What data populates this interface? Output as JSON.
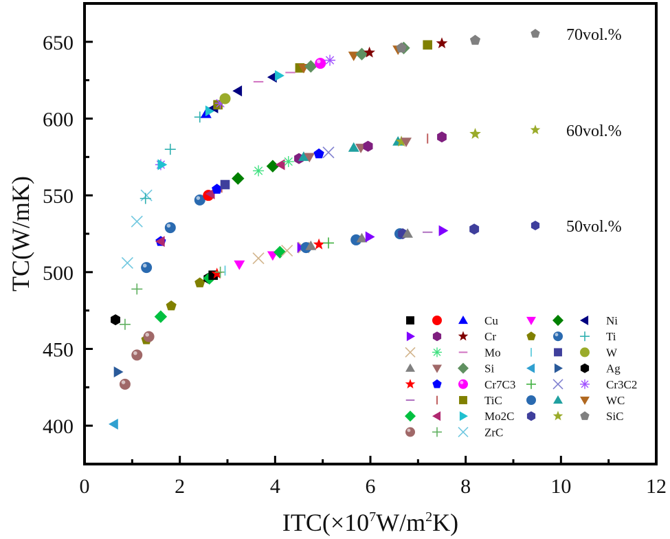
{
  "chart_data": {
    "type": "scatter",
    "title": "",
    "xlabel": "ITC(×10^7W/m^2K)",
    "xlabel_parts": {
      "pre": "ITC(×10",
      "sup1": "7",
      "mid": "W/m",
      "sup2": "2",
      "post": "K)"
    },
    "ylabel": "TC(W/mK)",
    "xlim": [
      0,
      12
    ],
    "ylim": [
      375,
      675
    ],
    "xticks": [
      0,
      2,
      4,
      6,
      8,
      10,
      12
    ],
    "xminor": [
      1,
      3,
      5,
      7,
      9,
      11
    ],
    "yticks": [
      400,
      450,
      500,
      550,
      600,
      650
    ],
    "yminor": [
      425,
      475,
      525,
      575,
      625
    ],
    "grid": false,
    "series_labels": [
      {
        "label": "70vol.%",
        "marker": "pentagon",
        "color": "#808080",
        "y_level": 651
      },
      {
        "label": "60vol.%",
        "marker": "star",
        "color": "#9aab2a",
        "y_level": 593
      },
      {
        "label": "50vol.%",
        "marker": "hexagon",
        "color": "#3f3f9c",
        "y_level": 531
      }
    ],
    "legend_position": "bottom-right",
    "legend": [
      {
        "label": "Cu",
        "markers": [
          {
            "m": "square",
            "c": "#000000"
          },
          {
            "m": "circle",
            "c": "#ff0000"
          },
          {
            "m": "triangle-up",
            "c": "#0000ff"
          }
        ]
      },
      {
        "label": "Cr",
        "markers": [
          {
            "m": "triangle-right",
            "c": "#8000ff"
          },
          {
            "m": "hexagon",
            "c": "#7f1f7f"
          },
          {
            "m": "star",
            "c": "#7f0000"
          }
        ]
      },
      {
        "label": "Mo",
        "markers": [
          {
            "m": "x",
            "c": "#d2b48c"
          },
          {
            "m": "asterisk",
            "c": "#40e080"
          },
          {
            "m": "hbar",
            "c": "#d070c0"
          }
        ]
      },
      {
        "label": "Si",
        "markers": [
          {
            "m": "triangle-up",
            "c": "#808080"
          },
          {
            "m": "triangle-down",
            "c": "#a06868"
          },
          {
            "m": "diamond",
            "c": "#5f9060"
          }
        ]
      },
      {
        "label": "Cr7C3",
        "markers": [
          {
            "m": "star",
            "c": "#ff0000"
          },
          {
            "m": "pentagon",
            "c": "#0000ff"
          },
          {
            "m": "sphere",
            "c": "#ff00ff"
          }
        ]
      },
      {
        "label": "TiC",
        "markers": [
          {
            "m": "hbar",
            "c": "#b070c0"
          },
          {
            "m": "vbar",
            "c": "#c06060"
          },
          {
            "m": "square",
            "c": "#808000"
          }
        ]
      },
      {
        "label": "Mo2C",
        "markers": [
          {
            "m": "diamond",
            "c": "#00c040"
          },
          {
            "m": "triangle-left",
            "c": "#b02870"
          },
          {
            "m": "triangle-right",
            "c": "#20c0d0"
          }
        ]
      },
      {
        "label": "ZrC",
        "markers": [
          {
            "m": "sphere",
            "c": "#a06868"
          },
          {
            "m": "plus",
            "c": "#60b060"
          },
          {
            "m": "x",
            "c": "#70c8e0"
          }
        ]
      },
      {
        "label": "Ni",
        "markers": [
          {
            "m": "triangle-down",
            "c": "#ff00ff"
          },
          {
            "m": "diamond",
            "c": "#008000"
          },
          {
            "m": "triangle-left",
            "c": "#000080"
          }
        ]
      },
      {
        "label": "Ti",
        "markers": [
          {
            "m": "pentagon",
            "c": "#808000"
          },
          {
            "m": "sphere",
            "c": "#2a6ab0"
          },
          {
            "m": "plus",
            "c": "#30b0b0"
          }
        ]
      },
      {
        "label": "W",
        "markers": [
          {
            "m": "vbar",
            "c": "#70d0e0"
          },
          {
            "m": "square",
            "c": "#3f3f9c"
          },
          {
            "m": "circle",
            "c": "#9aab2a"
          }
        ]
      },
      {
        "label": "Ag",
        "markers": [
          {
            "m": "triangle-left",
            "c": "#30a0d0"
          },
          {
            "m": "triangle-right",
            "c": "#2a5a9a"
          },
          {
            "m": "hexagon",
            "c": "#000000"
          }
        ]
      },
      {
        "label": "Cr3C2",
        "markers": [
          {
            "m": "plus",
            "c": "#40b040"
          },
          {
            "m": "x",
            "c": "#8080d0"
          },
          {
            "m": "asterisk",
            "c": "#a050ff"
          }
        ]
      },
      {
        "label": "WC",
        "markers": [
          {
            "m": "circle",
            "c": "#2a6ab0"
          },
          {
            "m": "triangle-up",
            "c": "#20a0a0"
          },
          {
            "m": "triangle-down",
            "c": "#b06820"
          }
        ]
      },
      {
        "label": "SiC",
        "markers": [
          {
            "m": "hexagon",
            "c": "#3f3f9c"
          },
          {
            "m": "star",
            "c": "#9aab2a"
          },
          {
            "m": "pentagon",
            "c": "#808080"
          }
        ]
      }
    ],
    "points": [
      {
        "x": 0.62,
        "y": 401,
        "m": "triangle-left",
        "c": "#30a0d0",
        "s": "50vol.%"
      },
      {
        "x": 0.85,
        "y": 427,
        "m": "sphere",
        "c": "#a06868",
        "s": "50vol.%"
      },
      {
        "x": 0.7,
        "y": 435,
        "m": "triangle-right",
        "c": "#2a5a9a",
        "s": "50vol.%"
      },
      {
        "x": 1.1,
        "y": 446,
        "m": "sphere",
        "c": "#a06868",
        "s": "50vol.%"
      },
      {
        "x": 1.3,
        "y": 456,
        "m": "pentagon",
        "c": "#808000",
        "s": "50vol.%"
      },
      {
        "x": 1.35,
        "y": 458,
        "m": "sphere",
        "c": "#a06868",
        "s": "50vol.%"
      },
      {
        "x": 1.6,
        "y": 471,
        "m": "diamond",
        "c": "#00c040",
        "s": "50vol.%"
      },
      {
        "x": 1.82,
        "y": 478,
        "m": "pentagon",
        "c": "#808000",
        "s": "50vol.%"
      },
      {
        "x": 2.42,
        "y": 493,
        "m": "pentagon",
        "c": "#808000",
        "s": "50vol.%"
      },
      {
        "x": 2.6,
        "y": 496,
        "m": "hexagon",
        "c": "#000000",
        "s": "50vol.%"
      },
      {
        "x": 2.62,
        "y": 496,
        "m": "diamond",
        "c": "#00c040",
        "s": "50vol.%"
      },
      {
        "x": 2.7,
        "y": 498,
        "m": "square",
        "c": "#000000",
        "s": "50vol.%"
      },
      {
        "x": 2.78,
        "y": 499,
        "m": "star",
        "c": "#ff0000",
        "s": "50vol.%"
      },
      {
        "x": 2.85,
        "y": 500,
        "m": "plus",
        "c": "#60b060",
        "s": "50vol.%"
      },
      {
        "x": 2.95,
        "y": 501,
        "m": "vbar",
        "c": "#70d0e0",
        "s": "50vol.%"
      },
      {
        "x": 3.25,
        "y": 505,
        "m": "triangle-down",
        "c": "#ff00ff",
        "s": "50vol.%"
      },
      {
        "x": 3.65,
        "y": 509,
        "m": "x",
        "c": "#d2b48c",
        "s": "50vol.%"
      },
      {
        "x": 3.95,
        "y": 511,
        "m": "triangle-down",
        "c": "#ff00ff",
        "s": "50vol.%"
      },
      {
        "x": 4.1,
        "y": 513,
        "m": "diamond",
        "c": "#00c040",
        "s": "50vol.%"
      },
      {
        "x": 4.25,
        "y": 514,
        "m": "x",
        "c": "#d2b48c",
        "s": "50vol.%"
      },
      {
        "x": 4.55,
        "y": 516,
        "m": "triangle-right",
        "c": "#8000ff",
        "s": "50vol.%"
      },
      {
        "x": 4.6,
        "y": 516,
        "m": "x",
        "c": "#d2b48c",
        "s": "50vol.%"
      },
      {
        "x": 4.65,
        "y": 516,
        "m": "circle",
        "c": "#2a6ab0",
        "s": "50vol.%"
      },
      {
        "x": 4.75,
        "y": 517,
        "m": "triangle-up",
        "c": "#808080",
        "s": "50vol.%"
      },
      {
        "x": 4.92,
        "y": 518,
        "m": "star",
        "c": "#ff0000",
        "s": "50vol.%"
      },
      {
        "x": 5.12,
        "y": 519,
        "m": "plus",
        "c": "#40b040",
        "s": "50vol.%"
      },
      {
        "x": 5.7,
        "y": 521,
        "m": "circle",
        "c": "#2a6ab0",
        "s": "50vol.%"
      },
      {
        "x": 5.82,
        "y": 522,
        "m": "triangle-up",
        "c": "#808080",
        "s": "50vol.%"
      },
      {
        "x": 5.98,
        "y": 523,
        "m": "triangle-right",
        "c": "#8000ff",
        "s": "50vol.%"
      },
      {
        "x": 6.62,
        "y": 525,
        "m": "circle",
        "c": "#2a6ab0",
        "s": "50vol.%"
      },
      {
        "x": 6.68,
        "y": 525,
        "m": "hexagon",
        "c": "#3f3f9c",
        "s": "50vol.%"
      },
      {
        "x": 6.78,
        "y": 525,
        "m": "triangle-up",
        "c": "#808080",
        "s": "50vol.%"
      },
      {
        "x": 7.2,
        "y": 526,
        "m": "hbar",
        "c": "#b070c0",
        "s": "50vol.%"
      },
      {
        "x": 7.52,
        "y": 527,
        "m": "triangle-right",
        "c": "#8000ff",
        "s": "50vol.%"
      },
      {
        "x": 8.18,
        "y": 528,
        "m": "hexagon",
        "c": "#3f3f9c",
        "s": "50vol.%"
      },
      {
        "x": 0.65,
        "y": 469,
        "m": "hexagon",
        "c": "#000000",
        "s": "60vol.%"
      },
      {
        "x": 0.85,
        "y": 466,
        "m": "plus",
        "c": "#60b060",
        "s": "60vol.%"
      },
      {
        "x": 1.1,
        "y": 489,
        "m": "plus",
        "c": "#60b060",
        "s": "60vol.%"
      },
      {
        "x": 1.3,
        "y": 503,
        "m": "sphere",
        "c": "#2a6ab0",
        "s": "60vol.%"
      },
      {
        "x": 1.6,
        "y": 520,
        "m": "pentagon",
        "c": "#0000ff",
        "s": "60vol.%"
      },
      {
        "x": 1.6,
        "y": 520,
        "m": "triangle-left",
        "c": "#b02870",
        "s": "60vol.%"
      },
      {
        "x": 1.8,
        "y": 529,
        "m": "sphere",
        "c": "#2a6ab0",
        "s": "60vol.%"
      },
      {
        "x": 2.42,
        "y": 547,
        "m": "sphere",
        "c": "#2a6ab0",
        "s": "60vol.%"
      },
      {
        "x": 2.6,
        "y": 550,
        "m": "circle",
        "c": "#ff0000",
        "s": "60vol.%"
      },
      {
        "x": 2.65,
        "y": 551,
        "m": "triangle-left",
        "c": "#b02870",
        "s": "60vol.%"
      },
      {
        "x": 2.78,
        "y": 554,
        "m": "pentagon",
        "c": "#0000ff",
        "s": "60vol.%"
      },
      {
        "x": 2.88,
        "y": 555,
        "m": "vbar",
        "c": "#c06060",
        "s": "60vol.%"
      },
      {
        "x": 2.95,
        "y": 557,
        "m": "square",
        "c": "#3f3f9c",
        "s": "60vol.%"
      },
      {
        "x": 3.22,
        "y": 561,
        "m": "diamond",
        "c": "#008000",
        "s": "60vol.%"
      },
      {
        "x": 3.65,
        "y": 566,
        "m": "asterisk",
        "c": "#40e080",
        "s": "60vol.%"
      },
      {
        "x": 3.95,
        "y": 569,
        "m": "diamond",
        "c": "#008000",
        "s": "60vol.%"
      },
      {
        "x": 4.12,
        "y": 570,
        "m": "triangle-left",
        "c": "#b02870",
        "s": "60vol.%"
      },
      {
        "x": 4.28,
        "y": 572,
        "m": "asterisk",
        "c": "#40e080",
        "s": "60vol.%"
      },
      {
        "x": 4.5,
        "y": 574,
        "m": "hexagon",
        "c": "#7f1f7f",
        "s": "60vol.%"
      },
      {
        "x": 4.6,
        "y": 575,
        "m": "triangle-up",
        "c": "#20a0a0",
        "s": "60vol.%"
      },
      {
        "x": 4.72,
        "y": 575,
        "m": "triangle-down",
        "c": "#a06868",
        "s": "60vol.%"
      },
      {
        "x": 4.92,
        "y": 577,
        "m": "pentagon",
        "c": "#0000ff",
        "s": "60vol.%"
      },
      {
        "x": 5.12,
        "y": 578,
        "m": "x",
        "c": "#8080d0",
        "s": "60vol.%"
      },
      {
        "x": 5.65,
        "y": 581,
        "m": "triangle-up",
        "c": "#20a0a0",
        "s": "60vol.%"
      },
      {
        "x": 5.8,
        "y": 581,
        "m": "triangle-down",
        "c": "#a06868",
        "s": "60vol.%"
      },
      {
        "x": 5.95,
        "y": 582,
        "m": "hexagon",
        "c": "#7f1f7f",
        "s": "60vol.%"
      },
      {
        "x": 6.58,
        "y": 585,
        "m": "triangle-up",
        "c": "#20a0a0",
        "s": "60vol.%"
      },
      {
        "x": 6.65,
        "y": 585,
        "m": "star",
        "c": "#9aab2a",
        "s": "60vol.%"
      },
      {
        "x": 6.75,
        "y": 585,
        "m": "triangle-down",
        "c": "#a06868",
        "s": "60vol.%"
      },
      {
        "x": 7.2,
        "y": 587,
        "m": "vbar",
        "c": "#c06060",
        "s": "60vol.%"
      },
      {
        "x": 7.5,
        "y": 588,
        "m": "hexagon",
        "c": "#7f1f7f",
        "s": "60vol.%"
      },
      {
        "x": 8.2,
        "y": 590,
        "m": "star",
        "c": "#9aab2a",
        "s": "60vol.%"
      },
      {
        "x": 0.9,
        "y": 506,
        "m": "x",
        "c": "#70c8e0",
        "s": "70vol.%"
      },
      {
        "x": 1.1,
        "y": 533,
        "m": "x",
        "c": "#70c8e0",
        "s": "70vol.%"
      },
      {
        "x": 1.3,
        "y": 550,
        "m": "x",
        "c": "#70c8e0",
        "s": "70vol.%"
      },
      {
        "x": 1.28,
        "y": 548,
        "m": "plus",
        "c": "#30b0b0",
        "s": "70vol.%"
      },
      {
        "x": 1.6,
        "y": 570,
        "m": "asterisk",
        "c": "#a050ff",
        "s": "70vol.%"
      },
      {
        "x": 1.62,
        "y": 570,
        "m": "triangle-right",
        "c": "#20c0d0",
        "s": "70vol.%"
      },
      {
        "x": 1.8,
        "y": 580,
        "m": "plus",
        "c": "#30b0b0",
        "s": "70vol.%"
      },
      {
        "x": 2.42,
        "y": 601,
        "m": "plus",
        "c": "#30b0b0",
        "s": "70vol.%"
      },
      {
        "x": 2.55,
        "y": 603,
        "m": "triangle-up",
        "c": "#0000ff",
        "s": "70vol.%"
      },
      {
        "x": 2.62,
        "y": 605,
        "m": "triangle-right",
        "c": "#20c0d0",
        "s": "70vol.%"
      },
      {
        "x": 2.72,
        "y": 607,
        "m": "triangle-left",
        "c": "#000080",
        "s": "70vol.%"
      },
      {
        "x": 2.8,
        "y": 609,
        "m": "square",
        "c": "#808000",
        "s": "70vol.%"
      },
      {
        "x": 2.85,
        "y": 610,
        "m": "asterisk",
        "c": "#a050ff",
        "s": "70vol.%"
      },
      {
        "x": 2.95,
        "y": 613,
        "m": "circle",
        "c": "#9aab2a",
        "s": "70vol.%"
      },
      {
        "x": 3.22,
        "y": 618,
        "m": "triangle-left",
        "c": "#000080",
        "s": "70vol.%"
      },
      {
        "x": 3.65,
        "y": 624,
        "m": "hbar",
        "c": "#d070c0",
        "s": "70vol.%"
      },
      {
        "x": 3.95,
        "y": 627,
        "m": "triangle-left",
        "c": "#000080",
        "s": "70vol.%"
      },
      {
        "x": 4.08,
        "y": 628,
        "m": "triangle-right",
        "c": "#20c0d0",
        "s": "70vol.%"
      },
      {
        "x": 4.32,
        "y": 630,
        "m": "hbar",
        "c": "#d070c0",
        "s": "70vol.%"
      },
      {
        "x": 4.52,
        "y": 633,
        "m": "square",
        "c": "#808000",
        "s": "70vol.%"
      },
      {
        "x": 4.6,
        "y": 633,
        "m": "triangle-down",
        "c": "#b06820",
        "s": "70vol.%"
      },
      {
        "x": 4.75,
        "y": 634,
        "m": "diamond",
        "c": "#5f9060",
        "s": "70vol.%"
      },
      {
        "x": 4.95,
        "y": 636,
        "m": "sphere",
        "c": "#ff00ff",
        "s": "70vol.%"
      },
      {
        "x": 5.15,
        "y": 638,
        "m": "asterisk",
        "c": "#a050ff",
        "s": "70vol.%"
      },
      {
        "x": 5.65,
        "y": 641,
        "m": "triangle-down",
        "c": "#b06820",
        "s": "70vol.%"
      },
      {
        "x": 5.82,
        "y": 642,
        "m": "diamond",
        "c": "#5f9060",
        "s": "70vol.%"
      },
      {
        "x": 5.98,
        "y": 643,
        "m": "star",
        "c": "#7f0000",
        "s": "70vol.%"
      },
      {
        "x": 6.58,
        "y": 645,
        "m": "triangle-down",
        "c": "#b06820",
        "s": "70vol.%"
      },
      {
        "x": 6.7,
        "y": 646,
        "m": "diamond",
        "c": "#5f9060",
        "s": "70vol.%"
      },
      {
        "x": 6.65,
        "y": 646,
        "m": "pentagon",
        "c": "#808080",
        "s": "70vol.%"
      },
      {
        "x": 7.2,
        "y": 648,
        "m": "square",
        "c": "#808000",
        "s": "70vol.%"
      },
      {
        "x": 7.5,
        "y": 649,
        "m": "star",
        "c": "#7f0000",
        "s": "70vol.%"
      },
      {
        "x": 8.2,
        "y": 651,
        "m": "pentagon",
        "c": "#808080",
        "s": "70vol.%"
      }
    ]
  }
}
